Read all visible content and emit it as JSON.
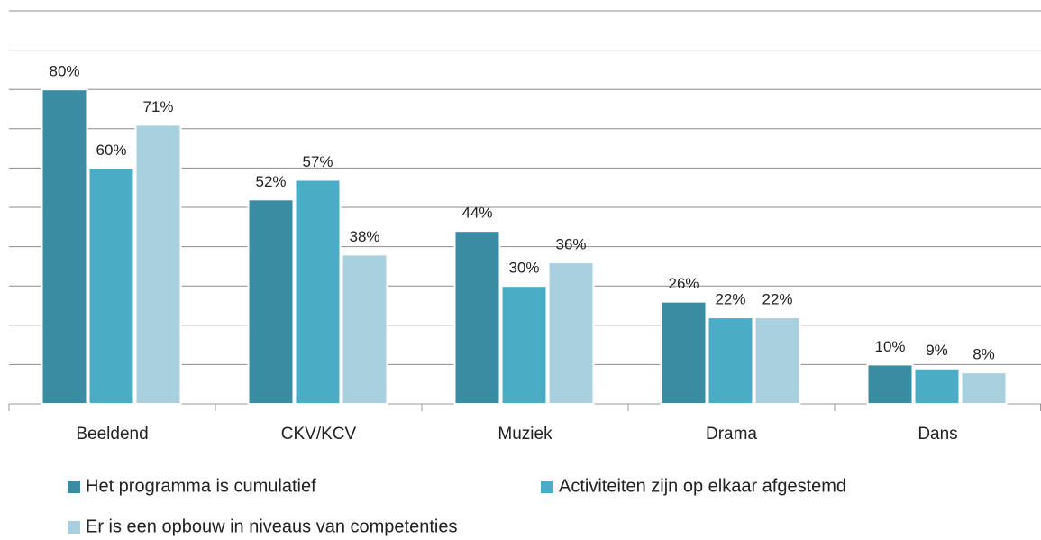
{
  "chart_data": {
    "type": "bar",
    "categories": [
      "Beeldend",
      "CKV/KCV",
      "Muziek",
      "Drama",
      "Dans"
    ],
    "series": [
      {
        "name": "Het programma is cumulatief",
        "color": "#3a8ca3",
        "values": [
          80,
          52,
          44,
          26,
          10
        ],
        "value_labels": [
          "80%",
          "52%",
          "44%",
          "26%",
          "10%"
        ]
      },
      {
        "name": "Activiteiten zijn op elkaar afgestemd",
        "color": "#4bacc6",
        "values": [
          60,
          57,
          30,
          22,
          9
        ],
        "value_labels": [
          "60%",
          "57%",
          "30%",
          "22%",
          "9%"
        ]
      },
      {
        "name": "Er is een opbouw in niveaus van competenties",
        "color": "#a9d0de",
        "values": [
          71,
          38,
          36,
          22,
          8
        ],
        "value_labels": [
          "71%",
          "38%",
          "36%",
          "22%",
          "8%"
        ]
      }
    ],
    "ylim": [
      0,
      100
    ],
    "yticks": [
      0,
      10,
      20,
      30,
      40,
      50,
      60,
      70,
      80,
      90,
      100
    ],
    "grid": true
  }
}
